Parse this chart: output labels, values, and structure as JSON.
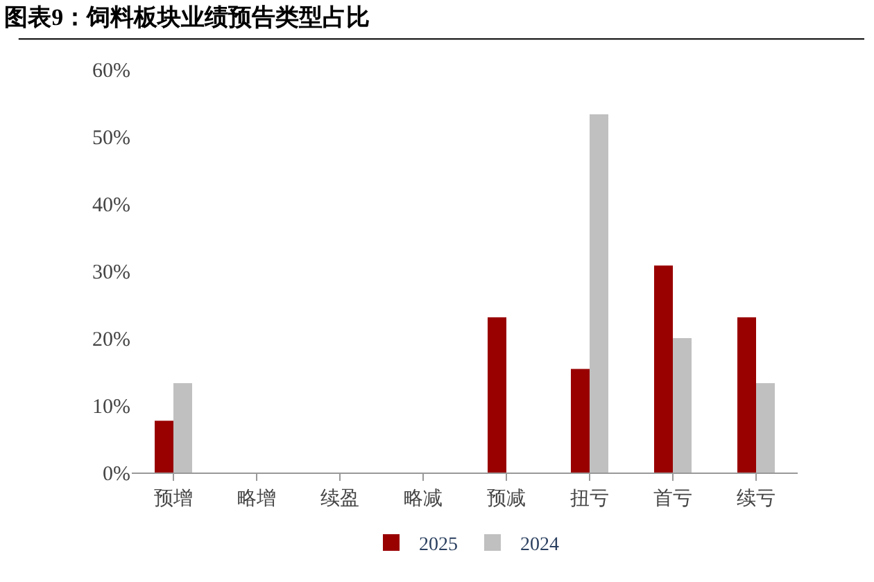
{
  "chart_data": {
    "type": "bar",
    "title": "图表9：饲料板块业绩预告类型占比",
    "categories": [
      "预增",
      "略增",
      "续盈",
      "略减",
      "预减",
      "扭亏",
      "首亏",
      "续亏"
    ],
    "series": [
      {
        "name": "2025",
        "color": "#990000",
        "values": [
          7.7,
          0,
          0,
          0,
          23.1,
          15.4,
          30.8,
          23.1
        ]
      },
      {
        "name": "2024",
        "color": "#c0c0c0",
        "values": [
          13.3,
          0,
          0,
          0,
          0,
          53.3,
          20.0,
          13.3
        ]
      }
    ],
    "ylim": [
      0,
      60
    ],
    "yticks": [
      {
        "value": 0,
        "label": "0%"
      },
      {
        "value": 10,
        "label": "10%"
      },
      {
        "value": 20,
        "label": "20%"
      },
      {
        "value": 30,
        "label": "30%"
      },
      {
        "value": 40,
        "label": "40%"
      },
      {
        "value": 50,
        "label": "50%"
      },
      {
        "value": 60,
        "label": "60%"
      }
    ],
    "grid": false,
    "legend": "bottom"
  }
}
